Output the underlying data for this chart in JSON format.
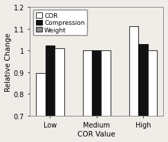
{
  "categories": [
    "Low",
    "Medium",
    "High"
  ],
  "series": [
    {
      "label": "COR",
      "values": [
        0.895,
        1.001,
        1.11
      ],
      "color": "white",
      "edgecolor": "#333333",
      "hatch": "",
      "lw": 0.8
    },
    {
      "label": "Compression",
      "values": [
        1.022,
        1.001,
        1.03
      ],
      "color": "#111111",
      "edgecolor": "#111111",
      "hatch": "",
      "lw": 0.8
    },
    {
      "label": "Weight",
      "values": [
        1.01,
        1.001,
        1.001
      ],
      "color": "white",
      "edgecolor": "#333333",
      "hatch": "",
      "lw": 0.8
    }
  ],
  "ylabel": "Relative Change",
  "xlabel": "COR Value",
  "ylim": [
    0.7,
    1.2
  ],
  "yticks": [
    0.7,
    0.8,
    0.9,
    1.0,
    1.1,
    1.2
  ],
  "ytick_labels": [
    "0.7",
    "0.8",
    "0.9",
    "1",
    "1.1",
    "1.2"
  ],
  "bar_width": 0.2,
  "axis_fontsize": 7.5,
  "tick_fontsize": 7,
  "legend_fontsize": 6.5,
  "bg_color": "#f0ede8",
  "spine_color": "#888888"
}
